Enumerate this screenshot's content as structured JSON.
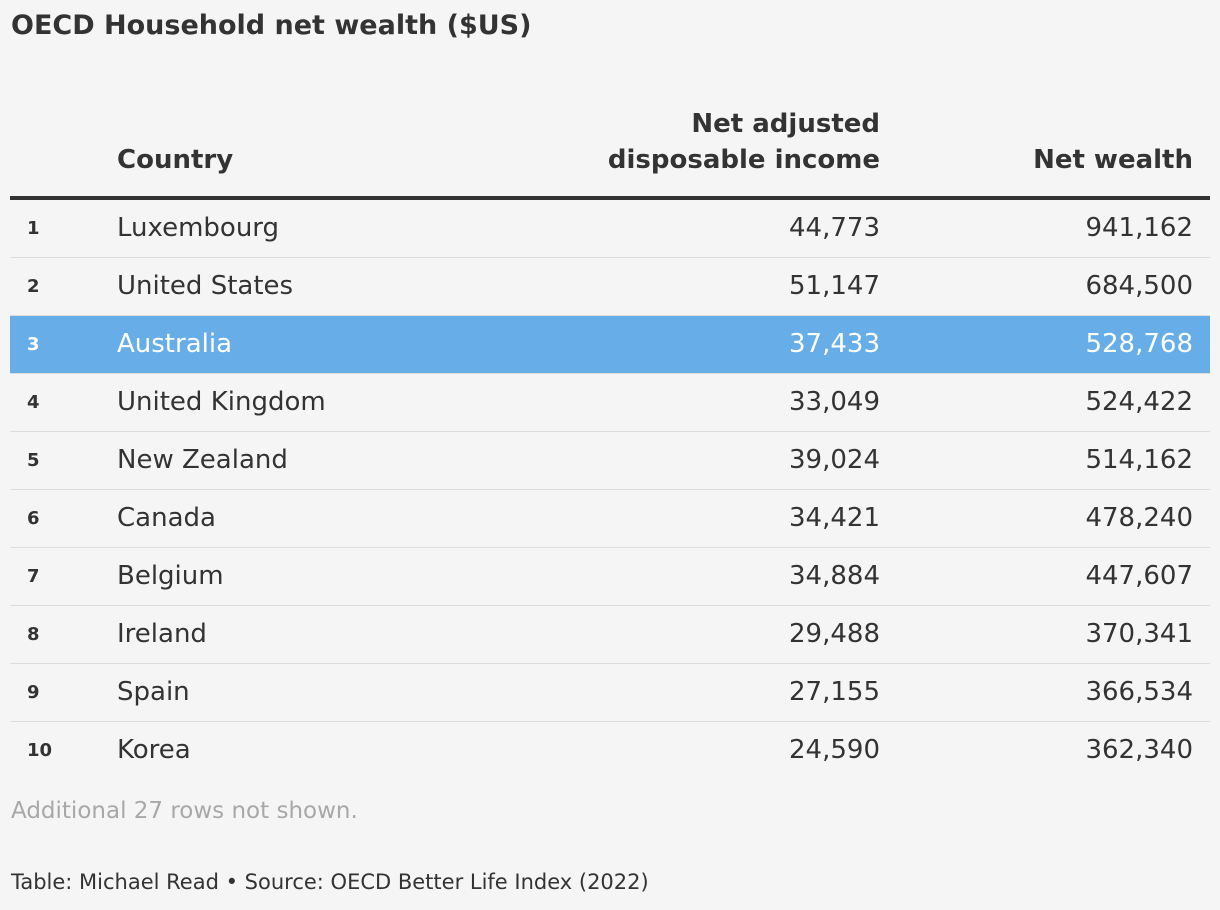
{
  "title": "OECD Household net wealth ($US)",
  "chart_data": {
    "type": "table",
    "title": "OECD Household net wealth ($US)",
    "columns": [
      "",
      "Country",
      "Net adjusted disposable income",
      "Net wealth"
    ],
    "header_income": "Net adjusted\ndisposable income",
    "rows": [
      {
        "rank": "1",
        "country": "Luxembourg",
        "income": "44,773",
        "wealth": "941,162",
        "highlight": false
      },
      {
        "rank": "2",
        "country": "United States",
        "income": "51,147",
        "wealth": "684,500",
        "highlight": false
      },
      {
        "rank": "3",
        "country": "Australia",
        "income": "37,433",
        "wealth": "528,768",
        "highlight": true
      },
      {
        "rank": "4",
        "country": "United Kingdom",
        "income": "33,049",
        "wealth": "524,422",
        "highlight": false
      },
      {
        "rank": "5",
        "country": "New Zealand",
        "income": "39,024",
        "wealth": "514,162",
        "highlight": false
      },
      {
        "rank": "6",
        "country": "Canada",
        "income": "34,421",
        "wealth": "478,240",
        "highlight": false
      },
      {
        "rank": "7",
        "country": "Belgium",
        "income": "34,884",
        "wealth": "447,607",
        "highlight": false
      },
      {
        "rank": "8",
        "country": "Ireland",
        "income": "29,488",
        "wealth": "370,341",
        "highlight": false
      },
      {
        "rank": "9",
        "country": "Spain",
        "income": "27,155",
        "wealth": "366,534",
        "highlight": false
      },
      {
        "rank": "10",
        "country": "Korea",
        "income": "24,590",
        "wealth": "362,340",
        "highlight": false
      }
    ],
    "highlight_color": "#67aee8"
  },
  "note": "Additional 27 rows not shown.",
  "footer": "Table: Michael Read • Source: OECD Better Life Index (2022)"
}
